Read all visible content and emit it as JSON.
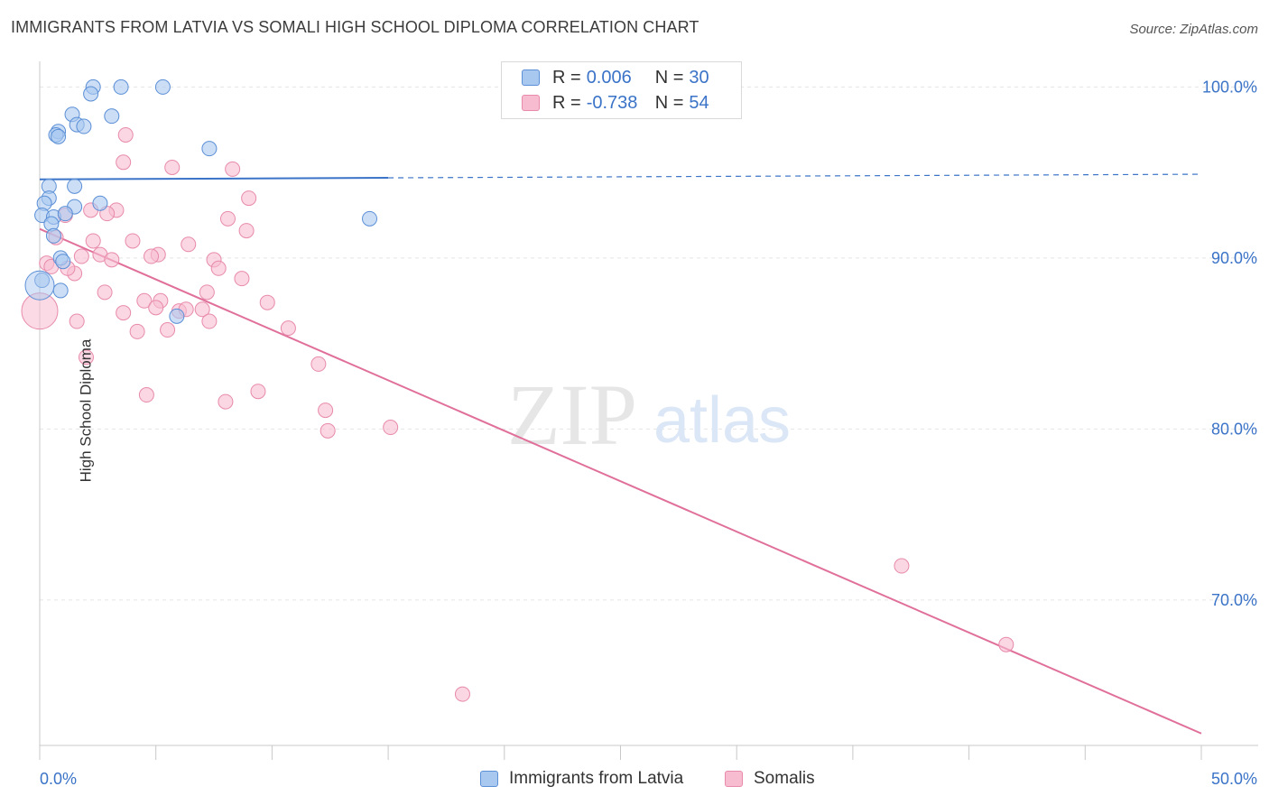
{
  "title": "IMMIGRANTS FROM LATVIA VS SOMALI HIGH SCHOOL DIPLOMA CORRELATION CHART",
  "source": "Source: ZipAtlas.com",
  "watermark": {
    "zip": "ZIP",
    "atlas": "atlas"
  },
  "legend": {
    "rows": [
      {
        "r_label": "R =",
        "r_value": "0.006",
        "n_label": "N =",
        "n_value": "30"
      },
      {
        "r_label": "R =",
        "r_value": "-0.738",
        "n_label": "N =",
        "n_value": "54"
      }
    ]
  },
  "bottom_legend": {
    "series1": "Immigrants from Latvia",
    "series2": "Somalis"
  },
  "colors": {
    "latvia_fill": "#a9c8f0",
    "latvia_stroke": "#5b8fd6",
    "latvia_line": "#3a73c7",
    "somali_fill": "#f7bcd0",
    "somali_stroke": "#e88aab",
    "somali_line": "#e0709a",
    "tick_label": "#3a73c7",
    "grid": "#e5e5e5"
  },
  "chart_data": {
    "type": "scatter",
    "title": "IMMIGRANTS FROM LATVIA VS SOMALI HIGH SCHOOL DIPLOMA CORRELATION CHART",
    "xlabel": "",
    "ylabel": "High School Diploma",
    "xlim": [
      0,
      50
    ],
    "ylim": [
      61.5,
      101.5
    ],
    "x_tick_labels": [
      "0.0%",
      "50.0%"
    ],
    "y_ticks": [
      70,
      80,
      90,
      100
    ],
    "y_tick_labels": [
      "70.0%",
      "80.0%",
      "90.0%",
      "100.0%"
    ],
    "grid": true,
    "legend_position": "top-center",
    "series": [
      {
        "name": "Immigrants from Latvia",
        "r": 0.006,
        "n": 30,
        "trend": {
          "x0": 0,
          "y0": 94.6,
          "x1": 50,
          "y1": 94.9,
          "solid_until_x": 15
        },
        "points": [
          {
            "x": 2.3,
            "y": 100.0
          },
          {
            "x": 3.5,
            "y": 100.0
          },
          {
            "x": 5.3,
            "y": 100.0
          },
          {
            "x": 2.2,
            "y": 99.6
          },
          {
            "x": 1.4,
            "y": 98.4
          },
          {
            "x": 3.1,
            "y": 98.3
          },
          {
            "x": 1.6,
            "y": 97.8
          },
          {
            "x": 1.9,
            "y": 97.7
          },
          {
            "x": 0.8,
            "y": 97.4
          },
          {
            "x": 0.7,
            "y": 97.2
          },
          {
            "x": 0.8,
            "y": 97.1
          },
          {
            "x": 7.3,
            "y": 96.4
          },
          {
            "x": 0.4,
            "y": 94.2
          },
          {
            "x": 1.5,
            "y": 94.2
          },
          {
            "x": 0.4,
            "y": 93.5
          },
          {
            "x": 0.2,
            "y": 93.2
          },
          {
            "x": 2.6,
            "y": 93.2
          },
          {
            "x": 1.5,
            "y": 93.0
          },
          {
            "x": 0.1,
            "y": 92.5
          },
          {
            "x": 0.6,
            "y": 92.4
          },
          {
            "x": 1.1,
            "y": 92.6
          },
          {
            "x": 14.2,
            "y": 92.3
          },
          {
            "x": 0.5,
            "y": 92.0
          },
          {
            "x": 0.6,
            "y": 91.3
          },
          {
            "x": 0.9,
            "y": 90.0
          },
          {
            "x": 0.1,
            "y": 88.7
          },
          {
            "x": 0.0,
            "y": 88.4
          },
          {
            "x": 0.9,
            "y": 88.1
          },
          {
            "x": 5.9,
            "y": 86.6
          },
          {
            "x": 1.0,
            "y": 89.8
          }
        ]
      },
      {
        "name": "Somalis",
        "r": -0.738,
        "n": 54,
        "trend": {
          "x0": 0,
          "y0": 91.7,
          "x1": 50,
          "y1": 62.2
        },
        "points": [
          {
            "x": 3.7,
            "y": 97.2
          },
          {
            "x": 3.6,
            "y": 95.6
          },
          {
            "x": 5.7,
            "y": 95.3
          },
          {
            "x": 8.3,
            "y": 95.2
          },
          {
            "x": 9.0,
            "y": 93.5
          },
          {
            "x": 2.2,
            "y": 92.8
          },
          {
            "x": 3.3,
            "y": 92.8
          },
          {
            "x": 2.9,
            "y": 92.6
          },
          {
            "x": 1.1,
            "y": 92.5
          },
          {
            "x": 8.1,
            "y": 92.3
          },
          {
            "x": 8.9,
            "y": 91.6
          },
          {
            "x": 0.7,
            "y": 91.2
          },
          {
            "x": 2.3,
            "y": 91.0
          },
          {
            "x": 4.0,
            "y": 91.0
          },
          {
            "x": 6.4,
            "y": 90.8
          },
          {
            "x": 5.1,
            "y": 90.2
          },
          {
            "x": 1.8,
            "y": 90.1
          },
          {
            "x": 2.6,
            "y": 90.2
          },
          {
            "x": 4.8,
            "y": 90.1
          },
          {
            "x": 3.1,
            "y": 89.9
          },
          {
            "x": 7.5,
            "y": 89.9
          },
          {
            "x": 0.3,
            "y": 89.7
          },
          {
            "x": 0.5,
            "y": 89.5
          },
          {
            "x": 7.7,
            "y": 89.4
          },
          {
            "x": 1.5,
            "y": 89.1
          },
          {
            "x": 8.7,
            "y": 88.8
          },
          {
            "x": 2.8,
            "y": 88.0
          },
          {
            "x": 7.2,
            "y": 88.0
          },
          {
            "x": 4.5,
            "y": 87.5
          },
          {
            "x": 5.2,
            "y": 87.5
          },
          {
            "x": 9.8,
            "y": 87.4
          },
          {
            "x": 5.0,
            "y": 87.1
          },
          {
            "x": 7.0,
            "y": 87.0
          },
          {
            "x": 6.0,
            "y": 86.9
          },
          {
            "x": 3.6,
            "y": 86.8
          },
          {
            "x": 1.6,
            "y": 86.3
          },
          {
            "x": 7.3,
            "y": 86.3
          },
          {
            "x": 10.7,
            "y": 85.9
          },
          {
            "x": 4.2,
            "y": 85.7
          },
          {
            "x": 5.5,
            "y": 85.8
          },
          {
            "x": 0.0,
            "y": 86.9
          },
          {
            "x": 2.0,
            "y": 84.2
          },
          {
            "x": 12.0,
            "y": 83.8
          },
          {
            "x": 9.4,
            "y": 82.2
          },
          {
            "x": 4.6,
            "y": 82.0
          },
          {
            "x": 8.0,
            "y": 81.6
          },
          {
            "x": 12.3,
            "y": 81.1
          },
          {
            "x": 12.4,
            "y": 79.9
          },
          {
            "x": 15.1,
            "y": 80.1
          },
          {
            "x": 37.1,
            "y": 72.0
          },
          {
            "x": 41.6,
            "y": 67.4
          },
          {
            "x": 18.2,
            "y": 64.5
          },
          {
            "x": 1.2,
            "y": 89.4
          },
          {
            "x": 6.3,
            "y": 87.0
          }
        ]
      }
    ]
  }
}
